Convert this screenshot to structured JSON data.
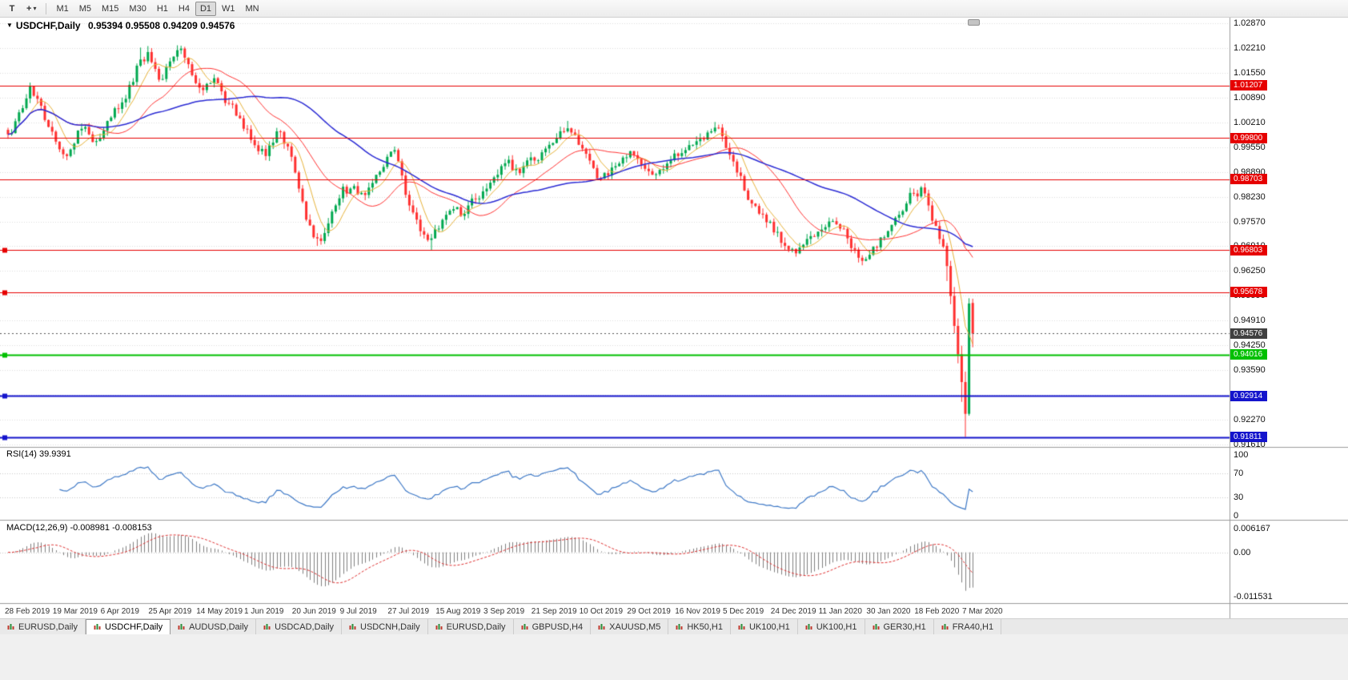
{
  "toolbar": {
    "tools": [
      {
        "name": "text-tool",
        "glyph": "T"
      },
      {
        "name": "crosshair-tool",
        "glyph": "+",
        "caret": "▾"
      }
    ],
    "timeframes": [
      "M1",
      "M5",
      "M15",
      "M30",
      "H1",
      "H4",
      "D1",
      "W1",
      "MN"
    ],
    "active_timeframe": "D1"
  },
  "chart": {
    "menu_icon_glyph": "▼",
    "symbol_title": "USDCHF,Daily",
    "ohlc_text": "0.95394 0.95508 0.94209 0.94576",
    "open": "0.95394",
    "high": "0.95508",
    "low": "0.94209",
    "close": "0.94576",
    "axis_price_top": 1.0287,
    "axis_price_bottom": 0.9161,
    "price_axis_labels": [
      "1.02870",
      "1.02210",
      "1.01550",
      "1.00890",
      "1.00210",
      "0.99550",
      "0.98890",
      "0.98230",
      "0.97570",
      "0.96910",
      "0.96250",
      "0.95590",
      "0.94910",
      "0.94250",
      "0.93590",
      "0.92930",
      "0.92270",
      "0.91610"
    ],
    "hlines": [
      {
        "price": 1.01207,
        "label": "1.01207",
        "color": "#e60000",
        "width": 1,
        "handle": false
      },
      {
        "price": 0.998,
        "label": "0.99800",
        "color": "#e60000",
        "width": 1,
        "handle": false
      },
      {
        "price": 0.98703,
        "label": "0.98703",
        "color": "#e60000",
        "width": 1,
        "handle": false
      },
      {
        "price": 0.96803,
        "label": "0.96803",
        "color": "#e60000",
        "width": 1,
        "handle": true
      },
      {
        "price": 0.95678,
        "label": "0.95678",
        "color": "#e60000",
        "width": 1,
        "handle": true
      },
      {
        "price": 0.94016,
        "label": "0.94016",
        "color": "#00c000",
        "width": 2,
        "handle": true
      },
      {
        "price": 0.92914,
        "label": "0.92914",
        "color": "#1414cc",
        "width": 2,
        "handle": true
      },
      {
        "price": 0.91811,
        "label": "0.91811",
        "color": "#1414cc",
        "width": 2,
        "handle": true
      }
    ],
    "current_price": 0.94576,
    "current_price_label": "0.94576",
    "date_labels": [
      "28 Feb 2019",
      "19 Mar 2019",
      "6 Apr 2019",
      "25 Apr 2019",
      "14 May 2019",
      "1 Jun 2019",
      "20 Jun 2019",
      "9 Jul 2019",
      "27 Jul 2019",
      "15 Aug 2019",
      "3 Sep 2019",
      "21 Sep 2019",
      "10 Oct 2019",
      "29 Oct 2019",
      "16 Nov 2019",
      "5 Dec 2019",
      "24 Dec 2019",
      "11 Jan 2020",
      "30 Jan 2020",
      "18 Feb 2020",
      "7 Mar 2020"
    ],
    "colors": {
      "bull": "#00a84f",
      "bear": "#ff2f2f",
      "ma_fast": "#e8b33a",
      "ma_mid": "#ff3333",
      "ma_slow": "#2b2bd4",
      "grid": "#dcdcdc"
    }
  },
  "chart_data": {
    "type": "candlestick",
    "symbol": "USDCHF",
    "timeframe": "Daily",
    "ylim": [
      0.9161,
      1.0287
    ],
    "candle_count": 263,
    "seed": 7,
    "ma_periods": {
      "fast": 7,
      "mid": 21,
      "slow": 50
    },
    "anchors": [
      [
        0,
        0.999
      ],
      [
        2,
        1.0025
      ],
      [
        4,
        1.006
      ],
      [
        6,
        1.0118
      ],
      [
        8,
        1.0085
      ],
      [
        11,
        1.001
      ],
      [
        14,
        0.995
      ],
      [
        16,
        0.9932
      ],
      [
        18,
        0.9965
      ],
      [
        20,
        1.0005
      ],
      [
        22,
        0.999
      ],
      [
        24,
        0.9972
      ],
      [
        26,
        1.0
      ],
      [
        28,
        1.0035
      ],
      [
        30,
        1.0058
      ],
      [
        32,
        1.0085
      ],
      [
        34,
        1.013
      ],
      [
        36,
        1.019
      ],
      [
        38,
        1.021
      ],
      [
        40,
        1.0165
      ],
      [
        42,
        1.0138
      ],
      [
        44,
        1.0185
      ],
      [
        46,
        1.0215
      ],
      [
        48,
        1.0195
      ],
      [
        50,
        1.0148
      ],
      [
        52,
        1.0115
      ],
      [
        54,
        1.0125
      ],
      [
        56,
        1.014
      ],
      [
        58,
        1.0105
      ],
      [
        60,
        1.0072
      ],
      [
        62,
        1.004
      ],
      [
        64,
        1.0005
      ],
      [
        66,
        0.9975
      ],
      [
        68,
        0.9945
      ],
      [
        70,
        0.9932
      ],
      [
        72,
        0.9968
      ],
      [
        73,
        0.9998
      ],
      [
        75,
        0.9965
      ],
      [
        77,
        0.993
      ],
      [
        79,
        0.9845
      ],
      [
        81,
        0.9762
      ],
      [
        83,
        0.9715
      ],
      [
        85,
        0.9705
      ],
      [
        87,
        0.9752
      ],
      [
        89,
        0.98
      ],
      [
        91,
        0.985
      ],
      [
        93,
        0.9845
      ],
      [
        95,
        0.983
      ],
      [
        97,
        0.9828
      ],
      [
        99,
        0.986
      ],
      [
        101,
        0.989
      ],
      [
        103,
        0.993
      ],
      [
        105,
        0.9948
      ],
      [
        107,
        0.988
      ],
      [
        109,
        0.98
      ],
      [
        111,
        0.9762
      ],
      [
        113,
        0.9722
      ],
      [
        115,
        0.9712
      ],
      [
        117,
        0.9738
      ],
      [
        119,
        0.9775
      ],
      [
        121,
        0.979
      ],
      [
        123,
        0.9772
      ],
      [
        125,
        0.98
      ],
      [
        127,
        0.9818
      ],
      [
        130,
        0.9845
      ],
      [
        132,
        0.9875
      ],
      [
        134,
        0.9905
      ],
      [
        136,
        0.9922
      ],
      [
        138,
        0.9898
      ],
      [
        140,
        0.9905
      ],
      [
        143,
        0.992
      ],
      [
        145,
        0.9942
      ],
      [
        147,
        0.9962
      ],
      [
        149,
        0.998
      ],
      [
        151,
        0.9998
      ],
      [
        153,
        0.9995
      ],
      [
        155,
        0.9962
      ],
      [
        157,
        0.9938
      ],
      [
        159,
        0.99
      ],
      [
        161,
        0.9872
      ],
      [
        163,
        0.988
      ],
      [
        165,
        0.9905
      ],
      [
        167,
        0.9928
      ],
      [
        169,
        0.9945
      ],
      [
        171,
        0.9925
      ],
      [
        173,
        0.9898
      ],
      [
        175,
        0.9882
      ],
      [
        177,
        0.9895
      ],
      [
        179,
        0.9912
      ],
      [
        182,
        0.9932
      ],
      [
        184,
        0.9948
      ],
      [
        186,
        0.9962
      ],
      [
        188,
        0.9978
      ],
      [
        190,
        0.9995
      ],
      [
        192,
        1.0008
      ],
      [
        194,
        0.9985
      ],
      [
        196,
        0.9935
      ],
      [
        198,
        0.9888
      ],
      [
        200,
        0.984
      ],
      [
        202,
        0.9805
      ],
      [
        204,
        0.9778
      ],
      [
        206,
        0.9755
      ],
      [
        208,
        0.9728
      ],
      [
        210,
        0.97
      ],
      [
        212,
        0.9682
      ],
      [
        214,
        0.9672
      ],
      [
        216,
        0.9695
      ],
      [
        218,
        0.9718
      ],
      [
        220,
        0.973
      ],
      [
        222,
        0.9742
      ],
      [
        224,
        0.9758
      ],
      [
        226,
        0.9738
      ],
      [
        228,
        0.9712
      ],
      [
        230,
        0.9682
      ],
      [
        232,
        0.9652
      ],
      [
        234,
        0.9668
      ],
      [
        236,
        0.9688
      ],
      [
        238,
        0.9715
      ],
      [
        240,
        0.9748
      ],
      [
        242,
        0.9775
      ],
      [
        244,
        0.9805
      ],
      [
        246,
        0.9832
      ],
      [
        248,
        0.9848
      ],
      [
        250,
        0.98
      ],
      [
        252,
        0.9745
      ],
      [
        254,
        0.969
      ],
      [
        262,
        0.94576
      ]
    ],
    "overrides": [
      {
        "i": 36,
        "h": 1.0222
      },
      {
        "i": 38,
        "h": 1.0226
      },
      {
        "i": 46,
        "h": 1.0228
      },
      {
        "i": 84,
        "l": 0.9692
      },
      {
        "i": 85,
        "l": 0.9695
      },
      {
        "i": 115,
        "l": 0.968
      },
      {
        "i": 152,
        "h": 1.0026
      },
      {
        "i": 192,
        "h": 1.0023
      },
      {
        "i": 214,
        "l": 0.9663
      },
      {
        "i": 232,
        "l": 0.964
      },
      {
        "i": 248,
        "h": 0.9852
      },
      {
        "i": 255,
        "o": 0.9692,
        "h": 0.97,
        "l": 0.9598,
        "c": 0.9638
      },
      {
        "i": 256,
        "o": 0.9638,
        "h": 0.9652,
        "l": 0.9536,
        "c": 0.9558
      },
      {
        "i": 257,
        "o": 0.9558,
        "h": 0.9582,
        "l": 0.9458,
        "c": 0.9478
      },
      {
        "i": 258,
        "o": 0.9478,
        "h": 0.9498,
        "l": 0.9378,
        "c": 0.9402
      },
      {
        "i": 259,
        "o": 0.9402,
        "h": 0.9425,
        "l": 0.9275,
        "c": 0.9328
      },
      {
        "i": 260,
        "o": 0.9328,
        "h": 0.9356,
        "l": 0.9181,
        "c": 0.9243
      },
      {
        "i": 261,
        "o": 0.9243,
        "h": 0.9552,
        "l": 0.9238,
        "c": 0.9538
      },
      {
        "i": 262,
        "o": 0.95394,
        "h": 0.95508,
        "l": 0.94209,
        "c": 0.94576
      }
    ]
  },
  "rsi": {
    "label": "RSI(14) 39.9391",
    "period": 14,
    "value": 39.9391,
    "line_color": "#3e79c7",
    "level_lines": [
      70,
      30
    ],
    "scale": [
      {
        "v": 100,
        "t": "100"
      },
      {
        "v": 70,
        "t": "70"
      },
      {
        "v": 30,
        "t": "30"
      },
      {
        "v": 0,
        "t": "0"
      }
    ]
  },
  "macd": {
    "label": "MACD(12,26,9) -0.008981 -0.008153",
    "fast": 12,
    "slow": 26,
    "signal_period": 9,
    "macd_value": -0.008981,
    "signal_value": -0.008153,
    "hist_color": "#808080",
    "signal_color": "#e03030",
    "scale": [
      {
        "v": 0.006167,
        "t": "0.006167"
      },
      {
        "v": 0,
        "t": "0.00"
      },
      {
        "v": -0.011531,
        "t": "-0.011531"
      }
    ]
  },
  "tabs": [
    {
      "label": "EURUSD,Daily"
    },
    {
      "label": "USDCHF,Daily",
      "active": true
    },
    {
      "label": "AUDUSD,Daily"
    },
    {
      "label": "USDCAD,Daily"
    },
    {
      "label": "USDCNH,Daily"
    },
    {
      "label": "EURUSD,Daily"
    },
    {
      "label": "GBPUSD,H4"
    },
    {
      "label": "XAUUSD,M5"
    },
    {
      "label": "HK50,H1"
    },
    {
      "label": "UK100,H1"
    },
    {
      "label": "UK100,H1"
    },
    {
      "label": "GER30,H1"
    },
    {
      "label": "FRA40,H1"
    }
  ]
}
